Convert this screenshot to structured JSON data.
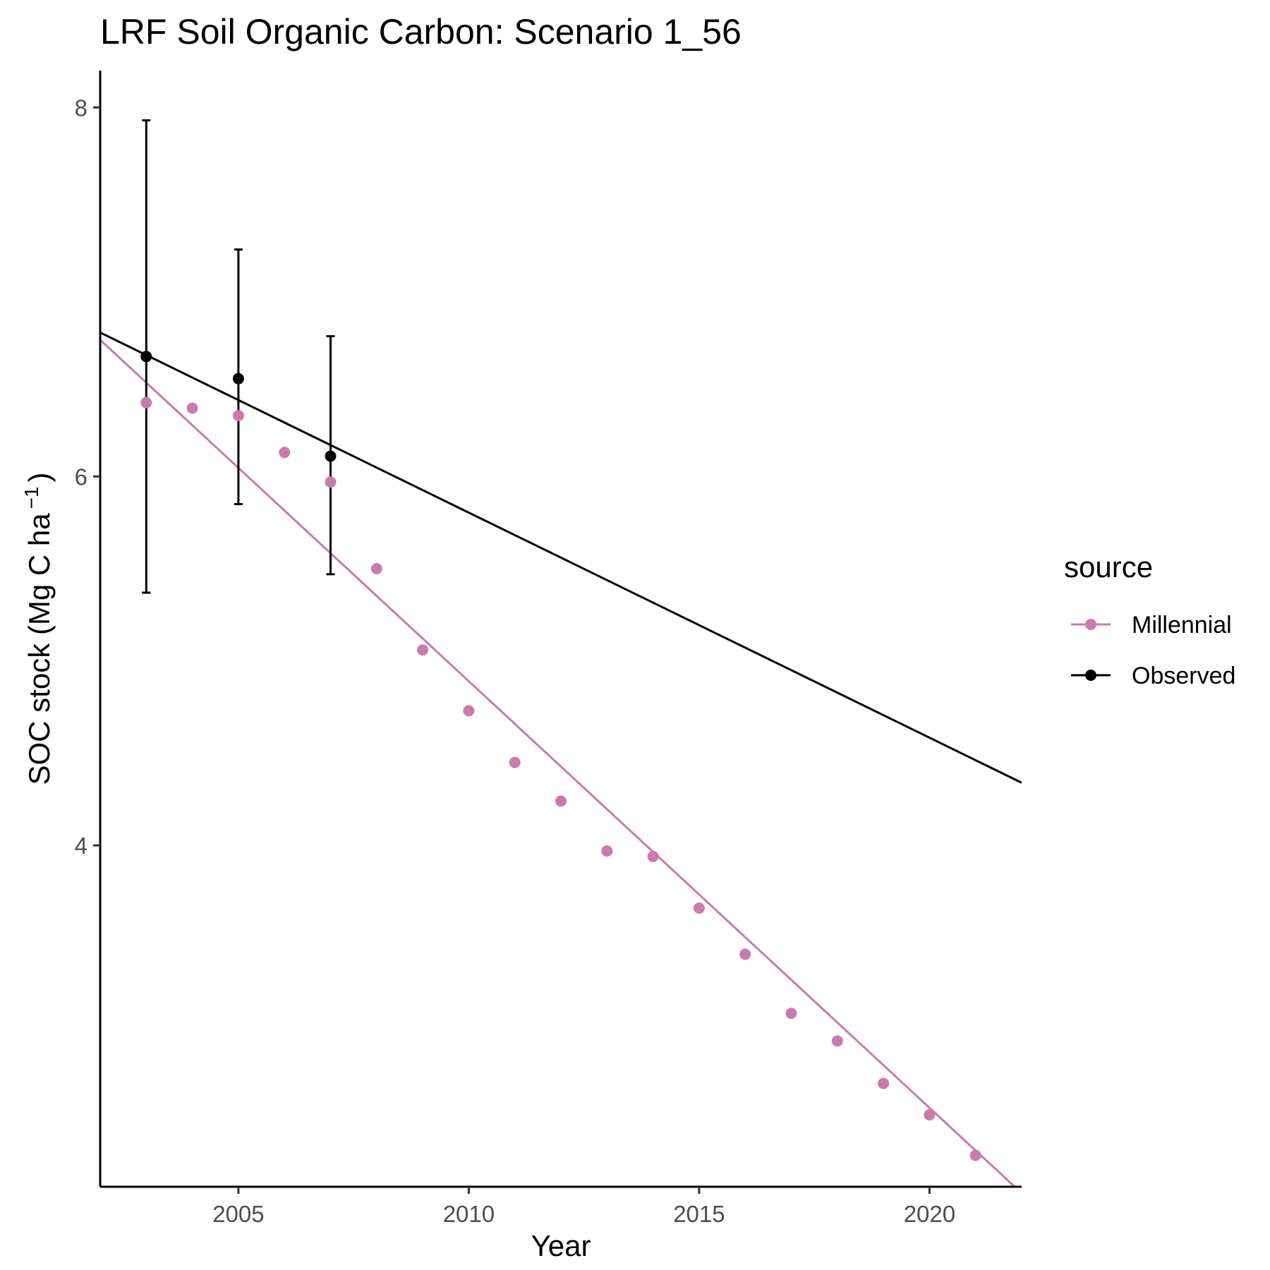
{
  "chart_data": {
    "type": "scatter",
    "title": "LRF Soil Organic Carbon: Scenario  1_56",
    "xlabel": "Year",
    "ylabel": {
      "main": "SOC stock (Mg C ha",
      "superscript": "−1",
      "close": ")"
    },
    "xlim": [
      2002,
      2022
    ],
    "ylim": [
      2.15,
      8.2
    ],
    "x_ticks": [
      2005,
      2010,
      2015,
      2020
    ],
    "y_ticks": [
      4,
      6,
      8
    ],
    "grid": false,
    "legend": {
      "title": "source",
      "position": "right",
      "entries": [
        {
          "label": "Millennial",
          "color": "#c97bab"
        },
        {
          "label": "Observed",
          "color": "#000000"
        }
      ]
    },
    "series": [
      {
        "name": "Millennial",
        "color": "#c97bab",
        "points": [
          {
            "x": 2003,
            "y": 6.4
          },
          {
            "x": 2004,
            "y": 6.37
          },
          {
            "x": 2005,
            "y": 6.33
          },
          {
            "x": 2006,
            "y": 6.13
          },
          {
            "x": 2007,
            "y": 5.97
          },
          {
            "x": 2008,
            "y": 5.5
          },
          {
            "x": 2009,
            "y": 5.06
          },
          {
            "x": 2010,
            "y": 4.73
          },
          {
            "x": 2011,
            "y": 4.45
          },
          {
            "x": 2012,
            "y": 4.24
          },
          {
            "x": 2013,
            "y": 3.97
          },
          {
            "x": 2014,
            "y": 3.94
          },
          {
            "x": 2015,
            "y": 3.66
          },
          {
            "x": 2016,
            "y": 3.41
          },
          {
            "x": 2017,
            "y": 3.09
          },
          {
            "x": 2018,
            "y": 2.94
          },
          {
            "x": 2019,
            "y": 2.71
          },
          {
            "x": 2020,
            "y": 2.54
          },
          {
            "x": 2021,
            "y": 2.32
          }
        ],
        "trend": {
          "x": [
            2002,
            2021.85
          ],
          "y": [
            6.74,
            2.15
          ]
        }
      },
      {
        "name": "Observed",
        "color": "#000000",
        "points": [
          {
            "x": 2003,
            "y": 6.65,
            "ymin": 5.37,
            "ymax": 7.93
          },
          {
            "x": 2005,
            "y": 6.53,
            "ymin": 5.85,
            "ymax": 7.23
          },
          {
            "x": 2007,
            "y": 6.11,
            "ymin": 5.47,
            "ymax": 6.76
          }
        ],
        "trend": {
          "x": [
            2002,
            2022
          ],
          "y": [
            6.78,
            4.34
          ]
        }
      }
    ]
  }
}
